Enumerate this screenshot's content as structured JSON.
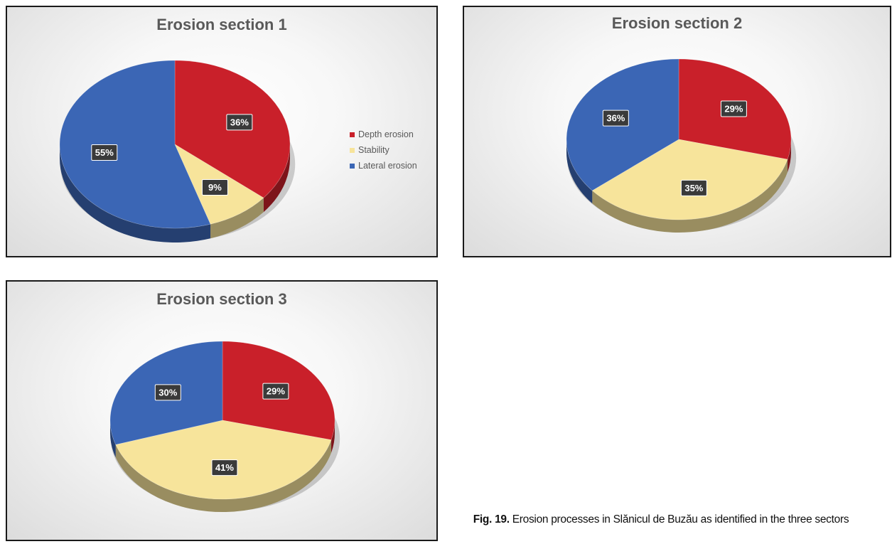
{
  "chart_data": [
    {
      "type": "pie",
      "title": "Erosion section 1",
      "categories": [
        "Depth erosion",
        "Stability",
        "Lateral erosion"
      ],
      "values": [
        36,
        9,
        55
      ],
      "data_labels": [
        "36%",
        "9%",
        "55%"
      ],
      "legend": "right",
      "colors": [
        "#c9202a",
        "#f7e49b",
        "#3b66b5"
      ]
    },
    {
      "type": "pie",
      "title": "Erosion section 2",
      "categories": [
        "Depth erosion",
        "Stability",
        "Lateral erosion"
      ],
      "values": [
        29,
        35,
        36
      ],
      "data_labels": [
        "29%",
        "35%",
        "36%"
      ],
      "colors": [
        "#c9202a",
        "#f7e49b",
        "#3b66b5"
      ]
    },
    {
      "type": "pie",
      "title": "Erosion section 3",
      "categories": [
        "Depth erosion",
        "Stability",
        "Lateral erosion"
      ],
      "values": [
        29,
        41,
        30
      ],
      "data_labels": [
        "29%",
        "41%",
        "30%"
      ],
      "colors": [
        "#c9202a",
        "#f7e49b",
        "#3b66b5"
      ]
    }
  ],
  "legend_items": [
    {
      "label": "Depth erosion",
      "color": "#c9202a"
    },
    {
      "label": "Stability",
      "color": "#f7e49b"
    },
    {
      "label": "Lateral erosion",
      "color": "#3b66b5"
    }
  ],
  "caption": {
    "label": "Fig. 19.",
    "text": "Erosion processes in Slănicul de Buzău as identified in the three sectors"
  }
}
